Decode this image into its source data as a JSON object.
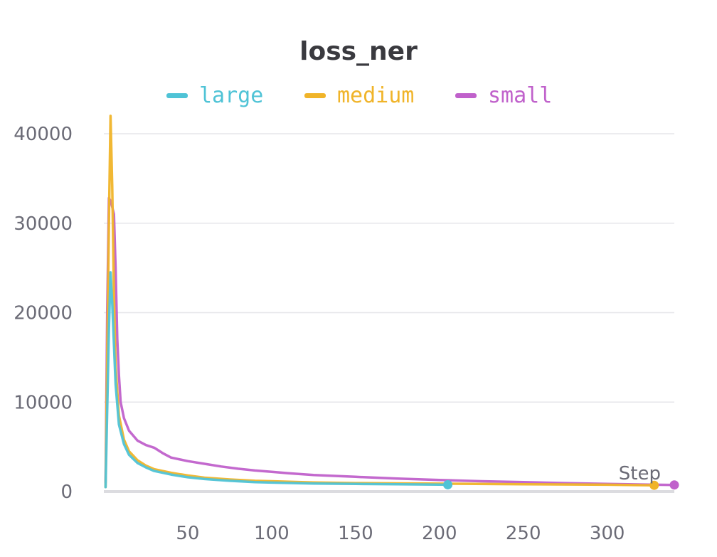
{
  "chart_data": {
    "type": "line",
    "title": "loss_ner",
    "xlabel": "Step",
    "ylabel": "",
    "xlim": [
      0,
      340
    ],
    "ylim": [
      0,
      42000
    ],
    "xticks": [
      50,
      100,
      150,
      200,
      250,
      300
    ],
    "yticks": [
      0,
      10000,
      20000,
      30000,
      40000
    ],
    "grid": "horizontal",
    "legend_position": "top",
    "series": [
      {
        "name": "large",
        "color": "#4fc3d6",
        "points": [
          [
            1,
            500
          ],
          [
            3,
            18000
          ],
          [
            4,
            24500
          ],
          [
            5,
            21000
          ],
          [
            7,
            12000
          ],
          [
            9,
            7500
          ],
          [
            12,
            5300
          ],
          [
            15,
            4100
          ],
          [
            20,
            3200
          ],
          [
            25,
            2700
          ],
          [
            30,
            2300
          ],
          [
            40,
            1900
          ],
          [
            50,
            1600
          ],
          [
            60,
            1400
          ],
          [
            75,
            1200
          ],
          [
            90,
            1050
          ],
          [
            100,
            1000
          ],
          [
            125,
            900
          ],
          [
            150,
            850
          ],
          [
            175,
            820
          ],
          [
            200,
            780
          ],
          [
            205,
            760
          ]
        ]
      },
      {
        "name": "medium",
        "color": "#f0b429",
        "points": [
          [
            1,
            500
          ],
          [
            3,
            30000
          ],
          [
            4,
            42000
          ],
          [
            5,
            34000
          ],
          [
            6,
            22000
          ],
          [
            7,
            14000
          ],
          [
            9,
            8500
          ],
          [
            12,
            5800
          ],
          [
            15,
            4500
          ],
          [
            20,
            3500
          ],
          [
            25,
            2900
          ],
          [
            30,
            2500
          ],
          [
            40,
            2100
          ],
          [
            50,
            1800
          ],
          [
            60,
            1550
          ],
          [
            75,
            1350
          ],
          [
            90,
            1200
          ],
          [
            100,
            1150
          ],
          [
            125,
            1020
          ],
          [
            150,
            950
          ],
          [
            200,
            880
          ],
          [
            250,
            820
          ],
          [
            300,
            760
          ],
          [
            328,
            700
          ]
        ]
      },
      {
        "name": "small",
        "color": "#c061cb",
        "points": [
          [
            1,
            1000
          ],
          [
            2,
            20000
          ],
          [
            3,
            32800
          ],
          [
            4,
            32500
          ],
          [
            5,
            31800
          ],
          [
            6,
            31000
          ],
          [
            7,
            25000
          ],
          [
            8,
            17000
          ],
          [
            9,
            13000
          ],
          [
            10,
            10000
          ],
          [
            12,
            8200
          ],
          [
            15,
            6800
          ],
          [
            20,
            5700
          ],
          [
            25,
            5200
          ],
          [
            30,
            4900
          ],
          [
            35,
            4300
          ],
          [
            40,
            3800
          ],
          [
            50,
            3400
          ],
          [
            60,
            3100
          ],
          [
            70,
            2800
          ],
          [
            80,
            2550
          ],
          [
            90,
            2350
          ],
          [
            100,
            2200
          ],
          [
            110,
            2050
          ],
          [
            125,
            1850
          ],
          [
            150,
            1650
          ],
          [
            175,
            1450
          ],
          [
            200,
            1300
          ],
          [
            225,
            1150
          ],
          [
            250,
            1050
          ],
          [
            275,
            950
          ],
          [
            300,
            850
          ],
          [
            325,
            780
          ],
          [
            340,
            740
          ]
        ]
      }
    ]
  }
}
